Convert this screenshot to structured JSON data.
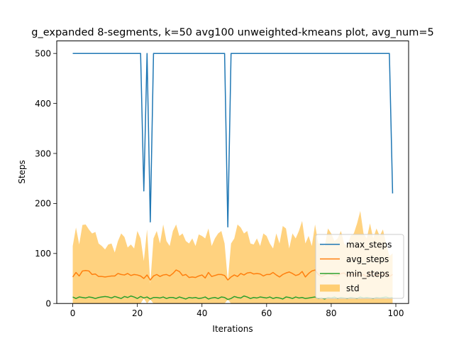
{
  "chart_data": {
    "type": "line",
    "title": "g_expanded 8-segments, k=50 avg100 unweighted-kmeans plot, avg_num=5",
    "xlabel": "Iterations",
    "ylabel": "Steps",
    "xlim": [
      -4.95,
      103.95
    ],
    "ylim": [
      0,
      525
    ],
    "xticks": [
      0,
      20,
      40,
      60,
      80,
      100
    ],
    "yticks": [
      0,
      100,
      200,
      300,
      400,
      500
    ],
    "grid": false,
    "legend_position": "lower-right",
    "legend": [
      "max_steps",
      "avg_steps",
      "min_steps",
      "std"
    ],
    "x": [
      0,
      1,
      2,
      3,
      4,
      5,
      6,
      7,
      8,
      9,
      10,
      11,
      12,
      13,
      14,
      15,
      16,
      17,
      18,
      19,
      20,
      21,
      22,
      23,
      24,
      25,
      26,
      27,
      28,
      29,
      30,
      31,
      32,
      33,
      34,
      35,
      36,
      37,
      38,
      39,
      40,
      41,
      42,
      43,
      44,
      45,
      46,
      47,
      48,
      49,
      50,
      51,
      52,
      53,
      54,
      55,
      56,
      57,
      58,
      59,
      60,
      61,
      62,
      63,
      64,
      65,
      66,
      67,
      68,
      69,
      70,
      71,
      72,
      73,
      74,
      75,
      76,
      77,
      78,
      79,
      80,
      81,
      82,
      83,
      84,
      85,
      86,
      87,
      88,
      89,
      90,
      91,
      92,
      93,
      94,
      95,
      96,
      97,
      98,
      99
    ],
    "series": [
      {
        "name": "max_steps",
        "color": "#1f77b4",
        "values": [
          500,
          500,
          500,
          500,
          500,
          500,
          500,
          500,
          500,
          500,
          500,
          500,
          500,
          500,
          500,
          500,
          500,
          500,
          500,
          500,
          500,
          500,
          225,
          500,
          163,
          500,
          500,
          500,
          500,
          500,
          500,
          500,
          500,
          500,
          500,
          500,
          500,
          500,
          500,
          500,
          500,
          500,
          500,
          500,
          500,
          500,
          500,
          500,
          153,
          500,
          500,
          500,
          500,
          500,
          500,
          500,
          500,
          500,
          500,
          500,
          500,
          500,
          500,
          500,
          500,
          500,
          500,
          500,
          500,
          500,
          500,
          500,
          500,
          500,
          500,
          500,
          500,
          500,
          500,
          500,
          500,
          500,
          500,
          500,
          500,
          500,
          500,
          500,
          500,
          500,
          500,
          500,
          500,
          500,
          500,
          500,
          500,
          500,
          500,
          220
        ]
      },
      {
        "name": "avg_steps",
        "color": "#ff7f0e",
        "values": [
          53,
          62,
          55,
          65,
          66,
          65,
          58,
          59,
          54,
          54,
          53,
          54,
          55,
          55,
          60,
          58,
          57,
          60,
          56,
          58,
          57,
          55,
          50,
          57,
          47,
          55,
          58,
          54,
          57,
          58,
          55,
          60,
          67,
          64,
          56,
          58,
          52,
          53,
          52,
          55,
          57,
          51,
          62,
          54,
          56,
          58,
          58,
          56,
          47,
          53,
          57,
          54,
          60,
          57,
          61,
          62,
          59,
          60,
          59,
          55,
          58,
          58,
          62,
          57,
          53,
          58,
          61,
          63,
          60,
          56,
          58,
          64,
          53,
          60,
          65,
          67,
          58,
          54,
          57,
          60,
          58,
          56,
          55,
          60,
          61,
          55,
          58,
          58,
          60,
          55,
          58,
          53,
          62,
          57,
          55,
          58,
          57,
          60,
          54,
          58
        ]
      },
      {
        "name": "min_steps",
        "color": "#2ca02c",
        "values": [
          13,
          10,
          13,
          12,
          11,
          13,
          12,
          10,
          12,
          13,
          14,
          13,
          11,
          14,
          12,
          10,
          14,
          12,
          15,
          13,
          10,
          14,
          11,
          13,
          9,
          12,
          12,
          11,
          13,
          10,
          12,
          12,
          10,
          13,
          11,
          9,
          12,
          11,
          12,
          10,
          11,
          13,
          9,
          11,
          12,
          10,
          13,
          12,
          8,
          10,
          14,
          12,
          11,
          15,
          13,
          10,
          12,
          11,
          13,
          12,
          11,
          13,
          10,
          12,
          11,
          9,
          13,
          12,
          10,
          13,
          11,
          12,
          10,
          11,
          12,
          13,
          10,
          11,
          9,
          12,
          11,
          13,
          10,
          12,
          11,
          10,
          12,
          11,
          10,
          13,
          11,
          12,
          11,
          10,
          12,
          11,
          12,
          13,
          11,
          12
        ]
      },
      {
        "name": "std",
        "color": "#ffa500",
        "type": "area",
        "upper": [
          115,
          152,
          118,
          157,
          158,
          148,
          140,
          143,
          120,
          115,
          108,
          118,
          120,
          102,
          125,
          140,
          133,
          112,
          118,
          110,
          145,
          130,
          85,
          148,
          40,
          130,
          145,
          120,
          158,
          125,
          115,
          145,
          158,
          135,
          140,
          125,
          120,
          130,
          115,
          138,
          135,
          130,
          150,
          115,
          130,
          140,
          145,
          120,
          45,
          120,
          130,
          158,
          152,
          140,
          145,
          120,
          118,
          130,
          115,
          140,
          135,
          120,
          110,
          140,
          120,
          155,
          150,
          110,
          140,
          130,
          145,
          165,
          120,
          135,
          115,
          158,
          120,
          120,
          115,
          150,
          140,
          125,
          130,
          145,
          120,
          115,
          135,
          140,
          160,
          185,
          140,
          130,
          160,
          130,
          150,
          135,
          148,
          120,
          95,
          100
        ],
        "lower": [
          0,
          0,
          0,
          0,
          0,
          0,
          0,
          0,
          0,
          0,
          0,
          0,
          0,
          0,
          0,
          0,
          0,
          0,
          0,
          0,
          0,
          0,
          10,
          0,
          8,
          0,
          0,
          0,
          0,
          0,
          0,
          0,
          0,
          0,
          0,
          0,
          0,
          0,
          0,
          0,
          0,
          0,
          0,
          0,
          0,
          0,
          0,
          0,
          8,
          0,
          0,
          0,
          0,
          0,
          0,
          0,
          0,
          0,
          0,
          0,
          0,
          0,
          0,
          0,
          0,
          0,
          0,
          0,
          0,
          0,
          0,
          0,
          0,
          0,
          0,
          0,
          0,
          0,
          0,
          0,
          0,
          0,
          0,
          0,
          0,
          0,
          0,
          0,
          0,
          0,
          0,
          0,
          0,
          0,
          0,
          0,
          0,
          0,
          0,
          0
        ]
      }
    ]
  }
}
